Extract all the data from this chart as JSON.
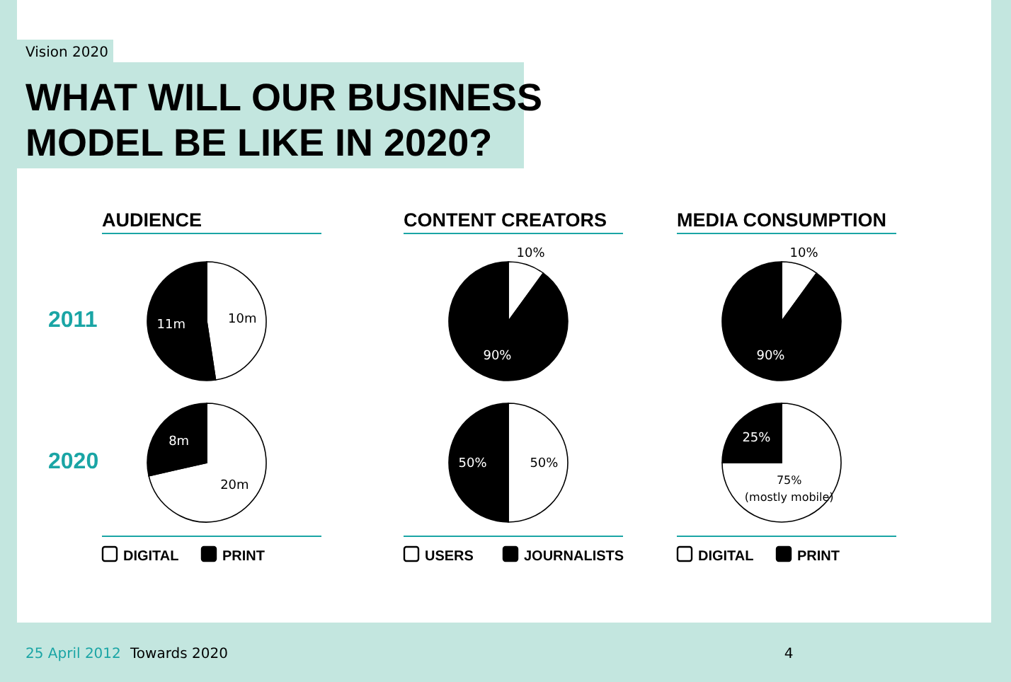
{
  "chart_data": [
    {
      "type": "other",
      "title": "WHAT WILL OUR BUSINESS MODEL BE LIKE IN 2020?",
      "subtitle": "Vision 2020",
      "annotations": [
        "25 April 2012",
        "Towards 2020",
        "4"
      ]
    },
    {
      "type": "pie",
      "title": "AUDIENCE",
      "ylabel": "2011",
      "categories": [
        null,
        null
      ],
      "values": [
        10,
        11
      ],
      "colors": [
        "#ffffff",
        "#000000"
      ],
      "value_labels": [
        "10m",
        "11m"
      ],
      "legend": false
    },
    {
      "type": "pie",
      "title": "CONTENT CREATORS",
      "categories": [
        null,
        null
      ],
      "values": [
        10,
        90
      ],
      "colors": [
        "#ffffff",
        "#000000"
      ],
      "value_labels": [
        "10%",
        "90%"
      ],
      "legend": false
    },
    {
      "type": "pie",
      "title": "MEDIA CONSUMPTION",
      "categories": [
        null,
        null
      ],
      "values": [
        10,
        90
      ],
      "colors": [
        "#ffffff",
        "#000000"
      ],
      "value_labels": [
        "10%",
        "90%"
      ],
      "legend": false
    },
    {
      "type": "pie",
      "ylabel": "2020",
      "categories": [
        "DIGITAL",
        "PRINT"
      ],
      "values": [
        20,
        8
      ],
      "colors": [
        "#ffffff",
        "#000000"
      ],
      "value_labels": [
        "20m",
        "8m"
      ],
      "legend": "bottom"
    },
    {
      "type": "pie",
      "categories": [
        "USERS",
        "JOURNALISTS"
      ],
      "values": [
        50,
        50
      ],
      "colors": [
        "#ffffff",
        "#000000"
      ],
      "value_labels": [
        "50%",
        "50%"
      ],
      "legend": "bottom"
    },
    {
      "type": "pie",
      "categories": [
        "DIGITAL",
        "PRINT"
      ],
      "values": [
        75,
        25
      ],
      "colors": [
        "#ffffff",
        "#000000"
      ],
      "value_labels": [
        "75% (mostly mobile)",
        "25%"
      ],
      "legend": "bottom"
    }
  ]
}
